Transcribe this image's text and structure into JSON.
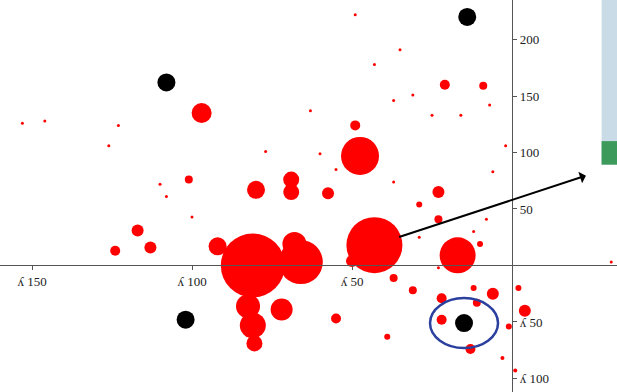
{
  "chart_data": {
    "type": "scatter",
    "marker": "bubble",
    "grid": false,
    "xlim": [
      -160,
      32.8
    ],
    "ylim": [
      -112,
      235
    ],
    "xticks": [
      {
        "value": -150,
        "label": "ʎ 150"
      },
      {
        "value": -100,
        "label": "ʎ 100"
      },
      {
        "value": -50,
        "label": "ʎ 50"
      }
    ],
    "yticks": [
      {
        "value": -100,
        "label": "ʎ 100"
      },
      {
        "value": -50,
        "label": "ʎ 50"
      },
      50,
      100,
      150,
      200
    ],
    "series": [
      {
        "color": "#ff0000",
        "x": [
          -81,
          -66,
          -68,
          -43,
          -47.5,
          -17,
          -97,
          -80,
          -69,
          -69,
          -92,
          -82.5,
          -81,
          -72,
          -80.5,
          -57.5,
          -117,
          -113,
          -124,
          -101,
          -50,
          -55,
          -23,
          -23,
          -6,
          -13,
          -22,
          -22,
          4,
          -21,
          -9,
          -49,
          -31,
          -37,
          -11,
          -10,
          -29,
          -12,
          -39,
          -1,
          2,
          -3,
          1,
          -153,
          -146,
          -123,
          -110,
          -108,
          -100,
          -63,
          -60,
          -55,
          -43,
          -31,
          -37,
          -29,
          -37,
          -49,
          -25,
          -16,
          -7,
          -6,
          -8,
          -2,
          -12,
          -23,
          -46,
          -90,
          31,
          -126,
          -77,
          -35
        ],
        "y": [
          0,
          3,
          19,
          18,
          97,
          9,
          135,
          67,
          76,
          65,
          17,
          -36,
          -53,
          -39,
          -69,
          64,
          31,
          16,
          13,
          76,
          4,
          -47,
          65,
          41,
          -25,
          -74,
          -48,
          -29,
          -40,
          160,
          159,
          124,
          -22,
          -11,
          -33,
          19,
          54,
          -20,
          -63,
          -54,
          -20,
          -82,
          -93,
          126,
          128,
          124,
          72,
          61,
          43,
          137,
          99,
          85,
          178,
          151,
          74,
          25,
          146,
          222,
          133,
          133,
          142,
          83,
          41,
          106,
          30,
          -2,
          34,
          2,
          3,
          106,
          101,
          191
        ],
        "sizes": [
          64,
          44,
          24,
          56,
          38,
          36,
          20,
          18,
          16,
          16,
          18,
          24,
          26,
          22,
          16,
          12,
          12,
          12,
          10,
          8,
          12,
          10,
          12,
          8,
          12,
          10,
          10,
          10,
          12,
          10,
          8,
          10,
          8,
          8,
          8,
          6,
          6,
          6,
          6,
          6,
          6,
          4,
          4,
          3,
          3,
          3,
          3,
          3,
          3,
          3,
          3,
          3,
          3,
          3,
          3,
          3,
          3,
          3,
          3,
          3,
          3,
          3,
          3,
          3,
          3,
          3,
          3,
          3,
          3,
          3,
          3,
          3
        ]
      },
      {
        "color": "#000000",
        "x": [
          -108,
          -14,
          -102,
          -15
        ],
        "y": [
          162,
          220,
          -48,
          -51
        ],
        "sizes": [
          18,
          18,
          18,
          18
        ]
      }
    ]
  }
}
